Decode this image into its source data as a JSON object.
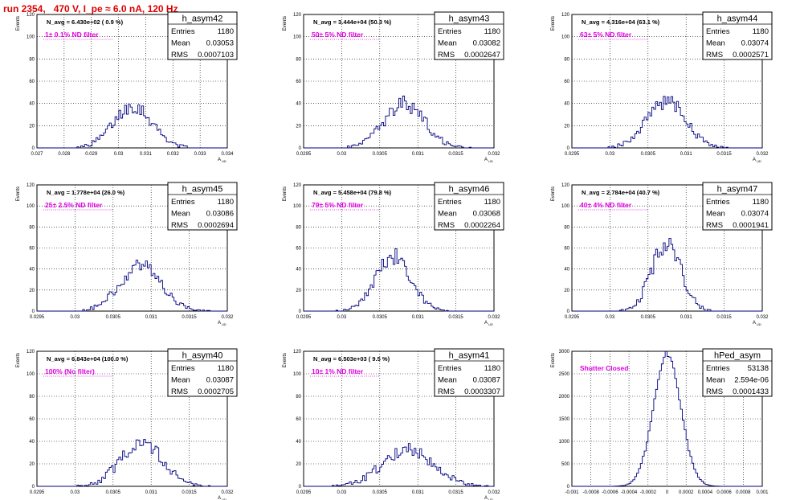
{
  "title": "run 2354,   470 V, I_pe ≈ 6.0 nA, 120 Hz",
  "chart_data": [
    {
      "type": "histogram",
      "name": "h_asym42",
      "n_avg": "N_avg = 6.430e+02 ( 0.9 %)",
      "filter": "1± 0.1% ND filter",
      "entries": "1180",
      "mean": "0.03053",
      "rms": "0.0007103",
      "xlabel": "A_{UD}",
      "ylabel": "Events",
      "xlim": [
        0.027,
        0.034
      ],
      "ylim": [
        0,
        120
      ],
      "xticks": [
        "0.027",
        "0.028",
        "0.029",
        "0.03",
        "0.031",
        "0.032",
        "0.033",
        "0.034"
      ],
      "yticks": [
        "0",
        "20",
        "40",
        "60",
        "80",
        "100",
        "120"
      ],
      "peak_mean": 0.03053,
      "peak_rms": 0.0007103,
      "peak_height": 38
    },
    {
      "type": "histogram",
      "name": "h_asym43",
      "n_avg": "N_avg = 3.444e+04 (50.3 %)",
      "filter": "50± 5% ND filter",
      "entries": "1180",
      "mean": "0.03082",
      "rms": "0.0002647",
      "xlabel": "A_{UD}",
      "ylabel": "Events",
      "xlim": [
        0.0295,
        0.032
      ],
      "ylim": [
        0,
        120
      ],
      "xticks": [
        "0.0295",
        "0.03",
        "0.0305",
        "0.031",
        "0.0315",
        "0.032"
      ],
      "yticks": [
        "0",
        "20",
        "40",
        "60",
        "80",
        "100",
        "120"
      ],
      "peak_mean": 0.03082,
      "peak_rms": 0.0002647,
      "peak_height": 40
    },
    {
      "type": "histogram",
      "name": "h_asym44",
      "n_avg": "N_avg = 4.316e+04 (63.1 %)",
      "filter": "63± 5% ND filter",
      "entries": "1180",
      "mean": "0.03074",
      "rms": "0.0002571",
      "xlabel": "A_{UD}",
      "ylabel": "Events",
      "xlim": [
        0.0295,
        0.032
      ],
      "ylim": [
        0,
        120
      ],
      "xticks": [
        "0.0295",
        "0.03",
        "0.0305",
        "0.031",
        "0.0315",
        "0.032"
      ],
      "yticks": [
        "0",
        "20",
        "40",
        "60",
        "80",
        "100",
        "120"
      ],
      "peak_mean": 0.03074,
      "peak_rms": 0.0002571,
      "peak_height": 42
    },
    {
      "type": "histogram",
      "name": "h_asym45",
      "n_avg": "N_avg = 1.778e+04 (26.0 %)",
      "filter": "25± 2.5% ND filter",
      "entries": "1180",
      "mean": "0.03086",
      "rms": "0.0002694",
      "xlabel": "A_{UD}",
      "ylabel": "Events",
      "xlim": [
        0.0295,
        0.032
      ],
      "ylim": [
        0,
        120
      ],
      "xticks": [
        "0.0295",
        "0.03",
        "0.0305",
        "0.031",
        "0.0315",
        "0.032"
      ],
      "yticks": [
        "0",
        "20",
        "40",
        "60",
        "80",
        "100",
        "120"
      ],
      "peak_mean": 0.03086,
      "peak_rms": 0.0002694,
      "peak_height": 44
    },
    {
      "type": "histogram",
      "name": "h_asym46",
      "n_avg": "N_avg = 5.458e+04 (79.8 %)",
      "filter": "79± 5% ND filter",
      "entries": "1180",
      "mean": "0.03068",
      "rms": "0.0002264",
      "xlabel": "A_{UD}",
      "ylabel": "Events",
      "xlim": [
        0.0295,
        0.032
      ],
      "ylim": [
        0,
        120
      ],
      "xticks": [
        "0.0295",
        "0.03",
        "0.0305",
        "0.031",
        "0.0315",
        "0.032"
      ],
      "yticks": [
        "0",
        "20",
        "40",
        "60",
        "80",
        "100",
        "120"
      ],
      "peak_mean": 0.03068,
      "peak_rms": 0.0002264,
      "peak_height": 52
    },
    {
      "type": "histogram",
      "name": "h_asym47",
      "n_avg": "N_avg = 2.784e+04 (40.7 %)",
      "filter": "40± 4% ND filter",
      "entries": "1180",
      "mean": "0.03074",
      "rms": "0.0001941",
      "xlabel": "A_{UD}",
      "ylabel": "Events",
      "xlim": [
        0.0295,
        0.032
      ],
      "ylim": [
        0,
        120
      ],
      "xticks": [
        "0.0295",
        "0.03",
        "0.0305",
        "0.031",
        "0.0315",
        "0.032"
      ],
      "yticks": [
        "0",
        "20",
        "40",
        "60",
        "80",
        "100",
        "120"
      ],
      "peak_mean": 0.03074,
      "peak_rms": 0.0001941,
      "peak_height": 64
    },
    {
      "type": "histogram",
      "name": "h_asym40",
      "n_avg": "N_avg = 6.843e+04 (100.0 %)",
      "filter": "100% (No filter)",
      "entries": "1180",
      "mean": "0.03087",
      "rms": "0.0002705",
      "xlabel": "A_{UD}",
      "ylabel": "Events",
      "xlim": [
        0.0295,
        0.032
      ],
      "ylim": [
        0,
        120
      ],
      "xticks": [
        "0.0295",
        "0.03",
        "0.0305",
        "0.031",
        "0.0315",
        "0.032"
      ],
      "yticks": [
        "0",
        "20",
        "40",
        "60",
        "80",
        "100",
        "120"
      ],
      "peak_mean": 0.03087,
      "peak_rms": 0.0002705,
      "peak_height": 40
    },
    {
      "type": "histogram",
      "name": "h_asym41",
      "n_avg": "N_avg = 6.503e+03 ( 9.5 %)",
      "filter": "10± 1% ND filter",
      "entries": "1180",
      "mean": "0.03087",
      "rms": "0.0003307",
      "xlabel": "A_{UD}",
      "ylabel": "Events",
      "xlim": [
        0.0295,
        0.032
      ],
      "ylim": [
        0,
        120
      ],
      "xticks": [
        "0.0295",
        "0.03",
        "0.0305",
        "0.031",
        "0.0315",
        "0.032"
      ],
      "yticks": [
        "0",
        "20",
        "40",
        "60",
        "80",
        "100",
        "120"
      ],
      "peak_mean": 0.03087,
      "peak_rms": 0.0003307,
      "peak_height": 34
    },
    {
      "type": "histogram",
      "name": "hPed_asym",
      "n_avg": "",
      "filter": "Shutter Closed",
      "entries": "53138",
      "mean": "2.594e-06",
      "rms": "0.0001433",
      "xlabel": "",
      "ylabel": "Events",
      "xlim": [
        -0.001,
        0.001
      ],
      "ylim": [
        0,
        3000
      ],
      "xticks": [
        "-0.001",
        "-0.0008",
        "-0.0006",
        "-0.0004",
        "-0.0002",
        "0",
        "0.0002",
        "0.0004",
        "0.0006",
        "0.0008",
        "0.001"
      ],
      "yticks": [
        "0",
        "500",
        "1000",
        "1500",
        "2000",
        "2500",
        "3000"
      ],
      "peak_mean": 0.0,
      "peak_rms": 0.0001433,
      "peak_height": 2950
    }
  ],
  "labels": {
    "entries": "Entries",
    "mean": "Mean",
    "rms": "RMS"
  },
  "colors": {
    "title": "#e00000",
    "filter": "#e000e0",
    "line": "#00007f",
    "grid": "#000000"
  }
}
